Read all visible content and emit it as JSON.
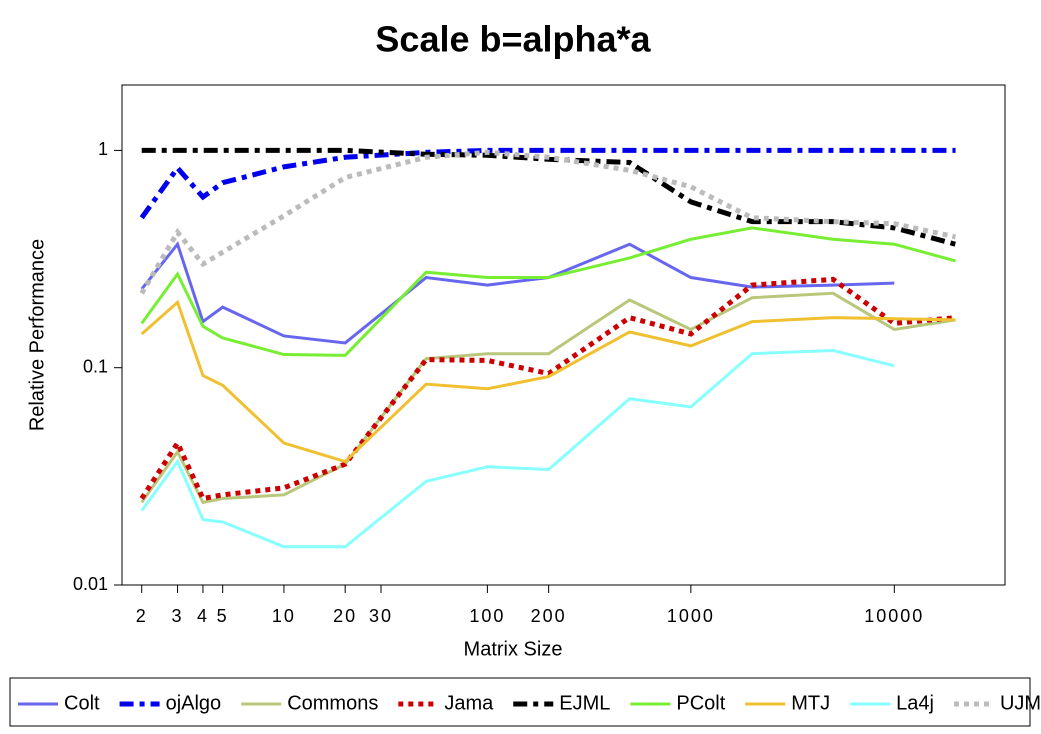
{
  "chart_data": {
    "type": "line",
    "title": "Scale b=alpha*a",
    "x_label": "Matrix Size",
    "y_label": "Relative Performance",
    "x_scale": "log",
    "y_scale": "log",
    "x": [
      2,
      3,
      4,
      5,
      10,
      20,
      50,
      100,
      200,
      500,
      1000,
      2000,
      5000,
      10000,
      20000
    ],
    "xlim": [
      1.6,
      35000
    ],
    "xticks": [
      2,
      3,
      4,
      5,
      10,
      20,
      30,
      100,
      200,
      1000,
      10000
    ],
    "ylim": [
      0.01,
      2
    ],
    "yticks": [
      0.01,
      0.1,
      1
    ],
    "legend": "bottom",
    "series": [
      {
        "name": "Colt",
        "color": "#6666ee",
        "style": "solid",
        "values": [
          0.23,
          0.37,
          0.163,
          0.19,
          0.14,
          0.13,
          0.26,
          0.24,
          0.26,
          0.37,
          0.26,
          0.235,
          0.24,
          0.245,
          null
        ]
      },
      {
        "name": "ojAlgo",
        "color": "#0000ee",
        "style": "dashdot",
        "values": [
          0.49,
          0.83,
          0.61,
          0.71,
          0.84,
          0.93,
          0.98,
          1,
          1,
          1,
          1,
          1,
          1,
          1,
          1
        ]
      },
      {
        "name": "Commons",
        "color": "#b8c77a",
        "style": "solid",
        "values": [
          0.024,
          0.041,
          0.024,
          0.025,
          0.026,
          0.036,
          0.11,
          0.116,
          0.116,
          0.205,
          0.15,
          0.21,
          0.22,
          0.15,
          0.166
        ]
      },
      {
        "name": "Jama",
        "color": "#cc0000",
        "style": "dot",
        "values": [
          0.025,
          0.045,
          0.025,
          0.026,
          0.028,
          0.036,
          0.109,
          0.108,
          0.094,
          0.17,
          0.143,
          0.24,
          0.255,
          0.16,
          0.17
        ]
      },
      {
        "name": "EJML",
        "color": "#000000",
        "style": "dashdot",
        "values": [
          1,
          1,
          1,
          1,
          1,
          1,
          0.96,
          0.95,
          0.91,
          0.88,
          0.58,
          0.47,
          0.47,
          0.44,
          0.37
        ]
      },
      {
        "name": "PColt",
        "color": "#77ee33",
        "style": "solid",
        "values": [
          0.16,
          0.27,
          0.155,
          0.137,
          0.115,
          0.114,
          0.275,
          0.26,
          0.26,
          0.32,
          0.39,
          0.44,
          0.39,
          0.37,
          0.31
        ]
      },
      {
        "name": "MTJ",
        "color": "#f0c030",
        "style": "solid",
        "values": [
          0.143,
          0.2,
          0.092,
          0.083,
          0.045,
          0.037,
          0.084,
          0.08,
          0.091,
          0.146,
          0.126,
          0.163,
          0.17,
          0.168,
          0.166
        ]
      },
      {
        "name": "La4j",
        "color": "#88ffff",
        "style": "solid",
        "values": [
          0.022,
          0.037,
          0.02,
          0.0195,
          0.015,
          0.015,
          0.03,
          0.035,
          0.034,
          0.072,
          0.066,
          0.116,
          0.12,
          0.102,
          null
        ]
      },
      {
        "name": "UJMP",
        "color": "#bbbbbb",
        "style": "dot",
        "values": [
          0.22,
          0.42,
          0.3,
          0.34,
          0.5,
          0.75,
          0.93,
          0.98,
          0.93,
          0.81,
          0.68,
          0.49,
          0.47,
          0.46,
          0.4
        ]
      }
    ]
  }
}
